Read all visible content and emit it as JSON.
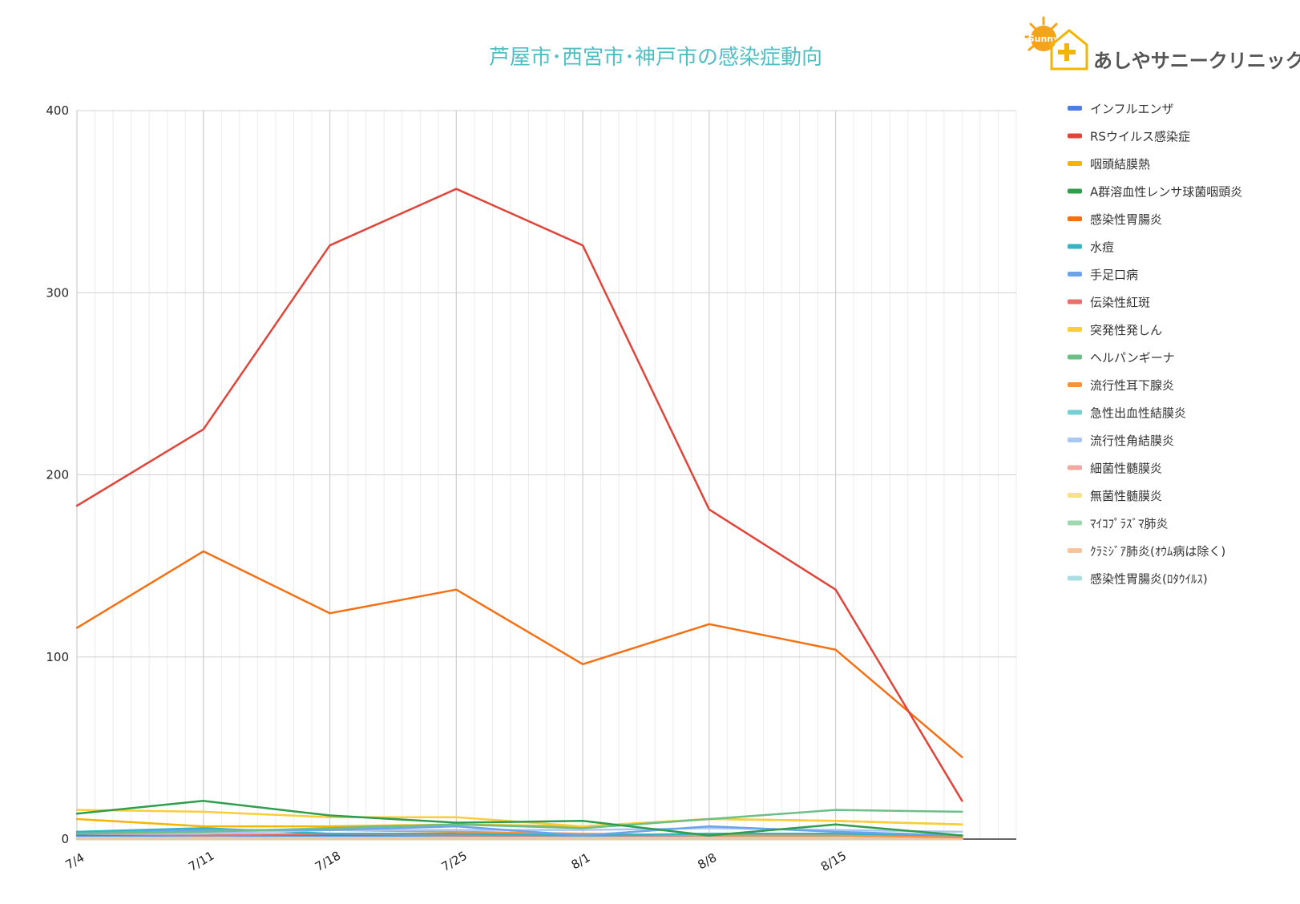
{
  "logo": {
    "text": "あしやサニークリニック",
    "badge": "Sunny"
  },
  "chart_data": {
    "type": "line",
    "title": "芦屋市･西宮市･神戸市の感染症動向",
    "xlabel": "",
    "ylabel": "",
    "ylim": [
      0,
      400
    ],
    "y_ticks": [
      0,
      100,
      200,
      300,
      400
    ],
    "x_ticks": [
      "7/4",
      "7/11",
      "7/18",
      "7/25",
      "8/1",
      "8/8",
      "8/15"
    ],
    "x_range": [
      "2023-07-01",
      "2023-08-22"
    ],
    "dates": [
      "2023-07-01",
      "2023-07-08",
      "2023-07-15",
      "2023-07-22",
      "2023-07-29",
      "2023-08-05",
      "2023-08-12",
      "2023-08-19"
    ],
    "grid": true,
    "legend": "right",
    "series": [
      {
        "name": "インフルエンザ",
        "color": "#4a7ee0",
        "values": [
          2,
          2,
          2,
          2,
          2,
          2,
          2,
          2
        ]
      },
      {
        "name": "RSウイルス感染症",
        "color": "#e0453a",
        "values": [
          183,
          225,
          326,
          357,
          326,
          181,
          137,
          21
        ]
      },
      {
        "name": "咽頭結膜熱",
        "color": "#f4b400",
        "values": [
          11,
          7,
          7,
          8,
          7,
          11,
          10,
          8
        ]
      },
      {
        "name": "A群溶血性レンサ球菌咽頭炎",
        "color": "#2e9e4d",
        "values": [
          14,
          21,
          13,
          9,
          10,
          2,
          8,
          2
        ]
      },
      {
        "name": "感染性胃腸炎",
        "color": "#f56f13",
        "values": [
          116,
          158,
          124,
          137,
          96,
          118,
          104,
          45
        ]
      },
      {
        "name": "水痘",
        "color": "#36b4c4",
        "values": [
          4,
          6,
          3,
          3,
          2,
          3,
          3,
          2
        ]
      },
      {
        "name": "手足口病",
        "color": "#6ba4ec",
        "values": [
          3,
          5,
          5,
          7,
          2,
          7,
          4,
          2
        ]
      },
      {
        "name": "伝染性紅斑",
        "color": "#e6736a",
        "values": [
          3,
          2,
          3,
          2,
          2,
          2,
          2,
          1
        ]
      },
      {
        "name": "突発性発しん",
        "color": "#fbcd3a",
        "values": [
          16,
          15,
          12,
          12,
          7,
          11,
          10,
          8
        ]
      },
      {
        "name": "ヘルパンギーナ",
        "color": "#6cbf86",
        "values": [
          3,
          4,
          6,
          8,
          6,
          11,
          16,
          15
        ]
      },
      {
        "name": "流行性耳下腺炎",
        "color": "#f7933d",
        "values": [
          4,
          3,
          5,
          4,
          3,
          2,
          2,
          1
        ]
      },
      {
        "name": "急性出血性結膜炎",
        "color": "#74cfd4",
        "values": [
          1,
          1,
          1,
          1,
          1,
          1,
          1,
          1
        ]
      },
      {
        "name": "流行性角結膜炎",
        "color": "#a9c7f5",
        "values": [
          3,
          3,
          5,
          5,
          5,
          6,
          5,
          4
        ]
      },
      {
        "name": "細菌性髄膜炎",
        "color": "#f4a8a2",
        "values": [
          0,
          0,
          0,
          0,
          0,
          0,
          0,
          0
        ]
      },
      {
        "name": "無菌性髄膜炎",
        "color": "#fbe08a",
        "values": [
          0,
          0,
          0,
          0,
          0,
          0,
          0,
          0
        ]
      },
      {
        "name": "ﾏｲｺﾌﾟﾗｽﾞﾏ肺炎",
        "color": "#9fd8ae",
        "values": [
          0,
          0,
          0,
          0,
          0,
          0,
          0,
          0
        ]
      },
      {
        "name": "ｸﾗﾐｼﾞｱ肺炎(ｵｳﾑ病は除く)",
        "color": "#fbc39a",
        "values": [
          0,
          0,
          0,
          0,
          0,
          0,
          0,
          0
        ]
      },
      {
        "name": "感染性胃腸炎(ﾛﾀｳｲﾙｽ)",
        "color": "#a8dfe3",
        "values": [
          1,
          1,
          1,
          1,
          1,
          1,
          1,
          1
        ]
      }
    ]
  }
}
